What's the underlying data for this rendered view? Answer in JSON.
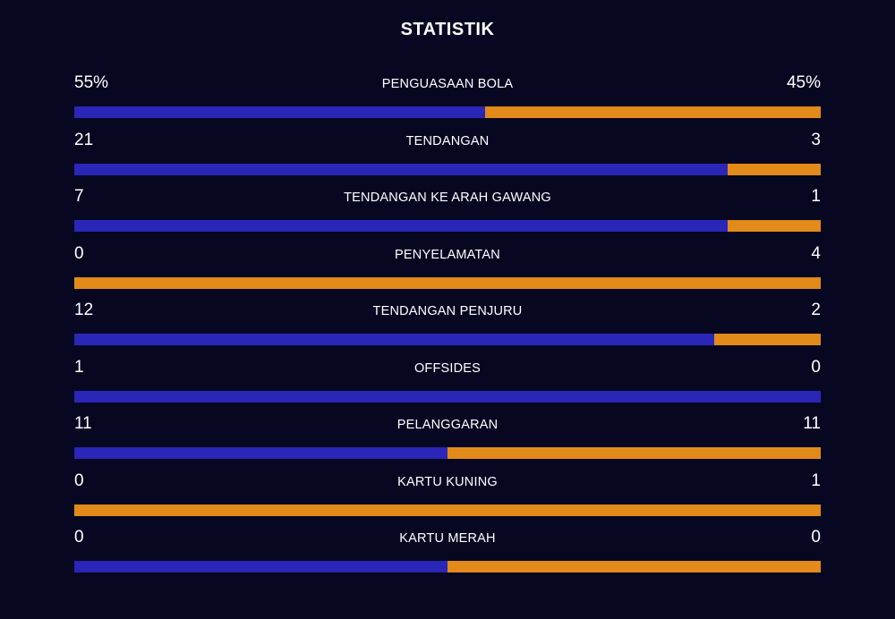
{
  "title": "STATISTIK",
  "colors": {
    "background": "#080722",
    "home": "#2a26b8",
    "away": "#e28a1a"
  },
  "stats": [
    {
      "label": "PENGUASAAN BOLA",
      "left": "55%",
      "right": "45%",
      "home_share": 55
    },
    {
      "label": "TENDANGAN",
      "left": "21",
      "right": "3",
      "home_share": 87.5
    },
    {
      "label": "TENDANGAN KE ARAH GAWANG",
      "left": "7",
      "right": "1",
      "home_share": 87.5
    },
    {
      "label": "PENYELAMATAN",
      "left": "0",
      "right": "4",
      "home_share": 0
    },
    {
      "label": "TENDANGAN PENJURU",
      "left": "12",
      "right": "2",
      "home_share": 85.7
    },
    {
      "label": "OFFSIDES",
      "left": "1",
      "right": "0",
      "home_share": 100
    },
    {
      "label": "PELANGGARAN",
      "left": "11",
      "right": "11",
      "home_share": 50
    },
    {
      "label": "KARTU KUNING",
      "left": "0",
      "right": "1",
      "home_share": 0
    },
    {
      "label": "KARTU MERAH",
      "left": "0",
      "right": "0",
      "home_share": 50
    }
  ]
}
